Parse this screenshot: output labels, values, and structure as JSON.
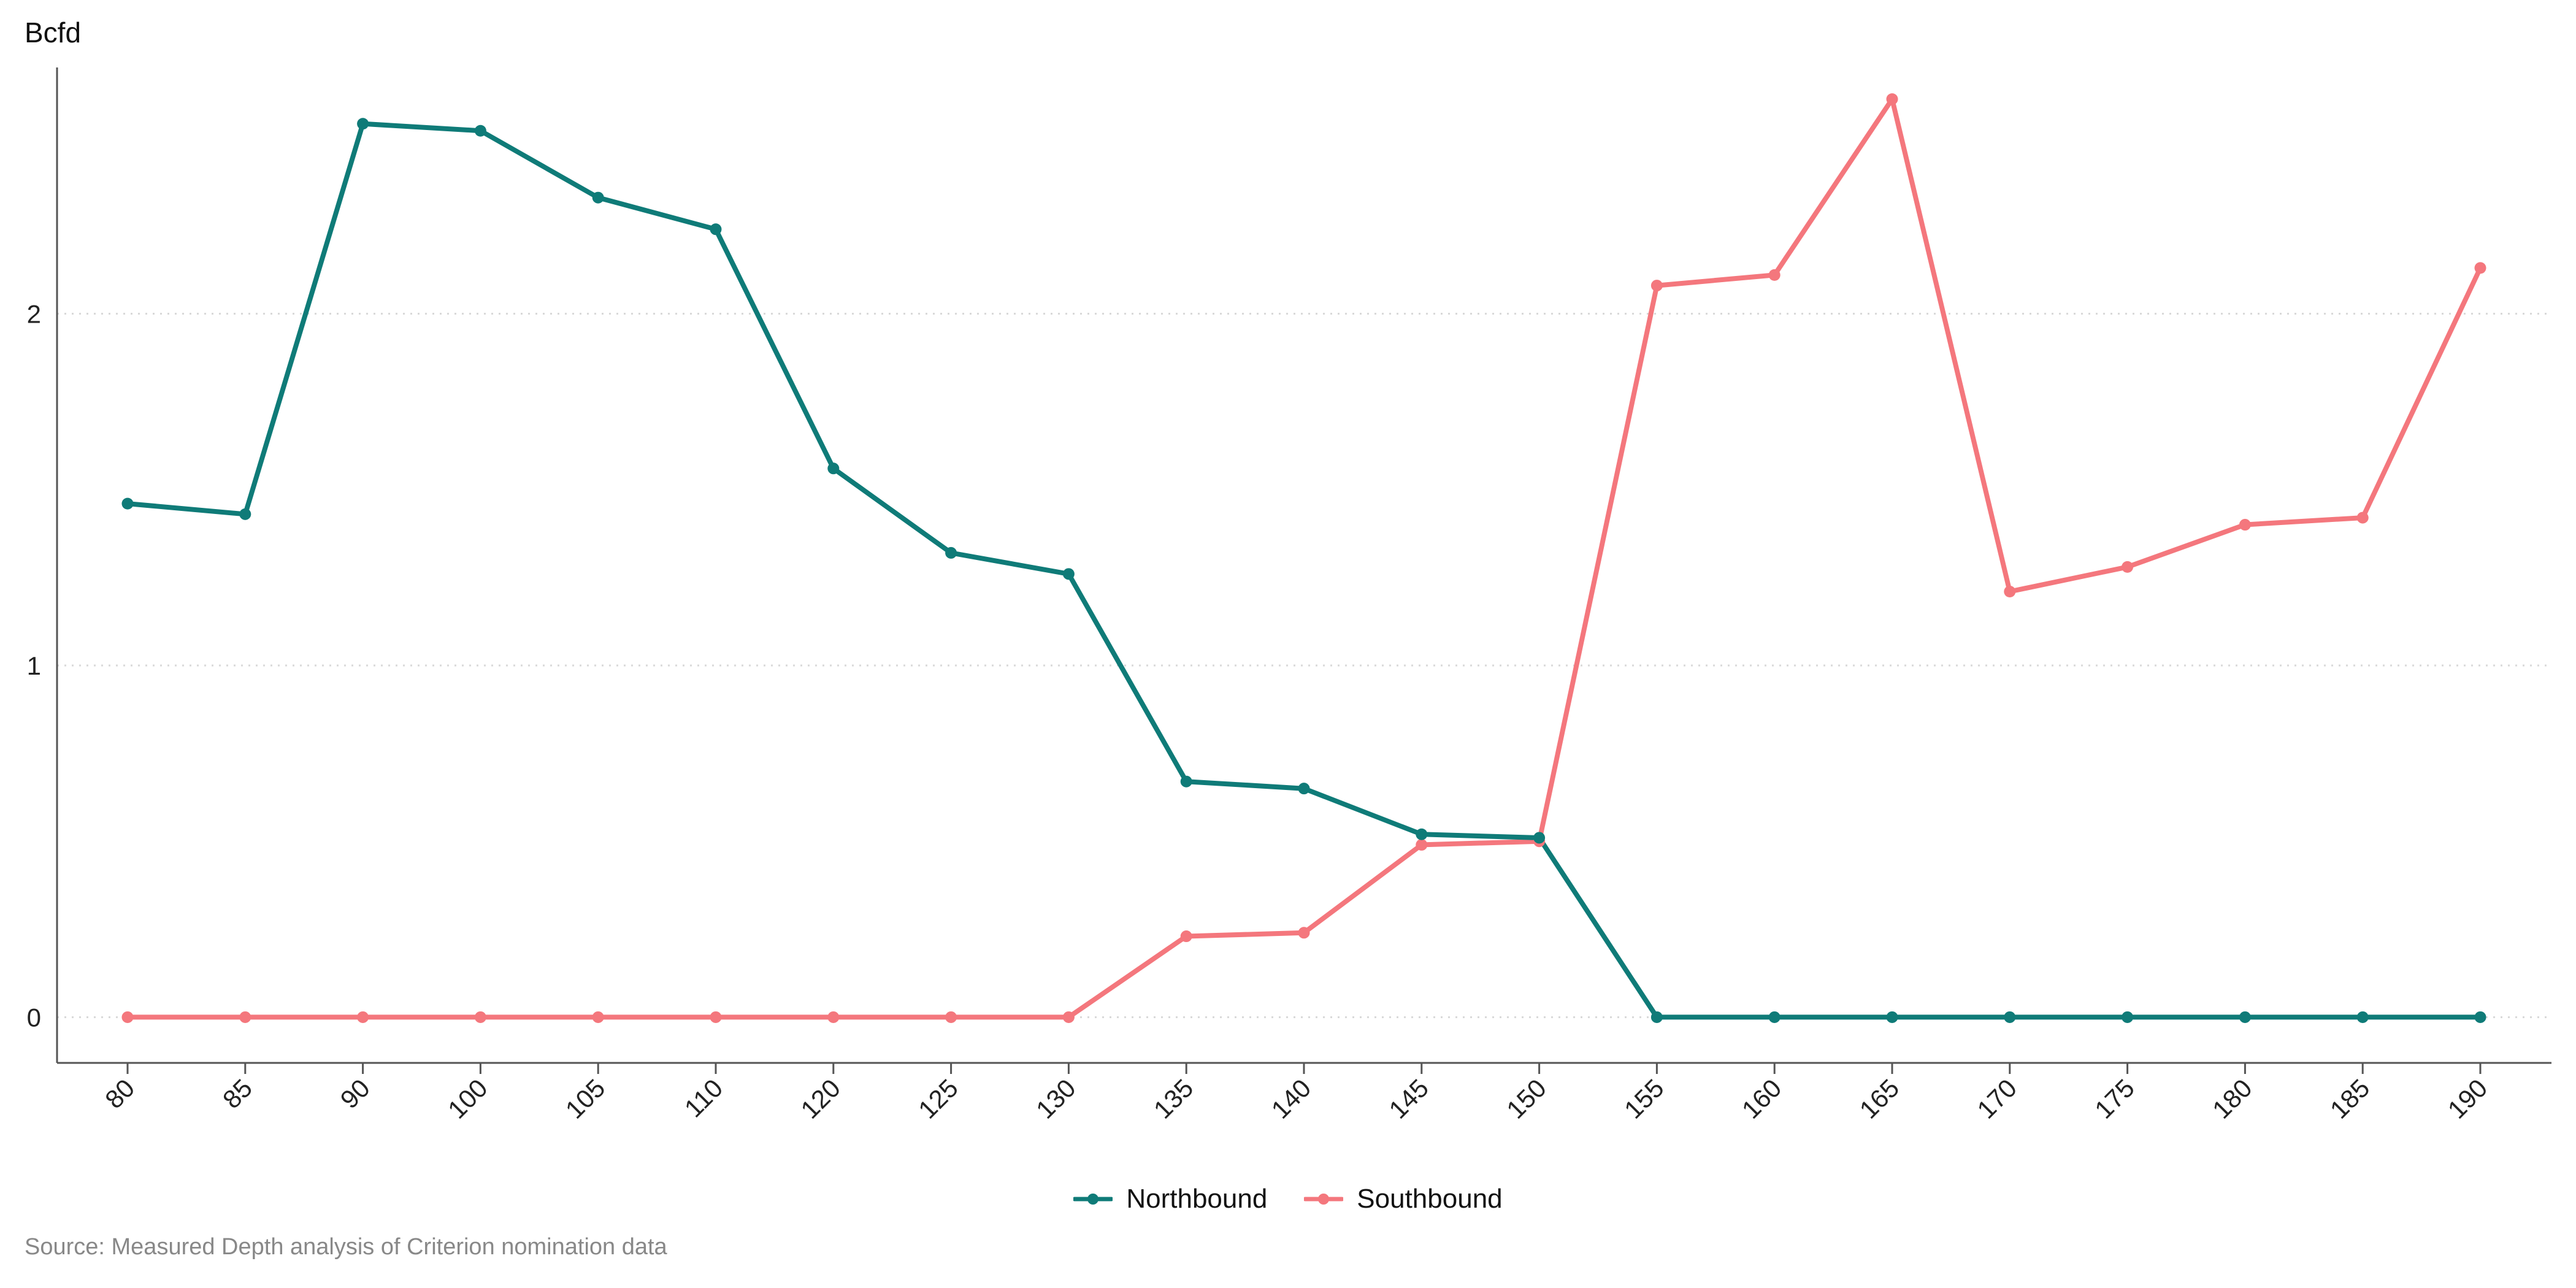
{
  "chart_data": {
    "type": "line",
    "title": "",
    "xlabel": "",
    "ylabel": "Bcfd",
    "categories": [
      "80",
      "85",
      "90",
      "100",
      "105",
      "110",
      "120",
      "125",
      "130",
      "135",
      "140",
      "145",
      "150",
      "155",
      "160",
      "165",
      "170",
      "175",
      "180",
      "185",
      "190"
    ],
    "ylim": [
      -0.13,
      2.7
    ],
    "yticks": [
      0,
      1,
      2
    ],
    "grid": "horizontal dotted",
    "legend_position": "bottom",
    "series": [
      {
        "name": "Northbound",
        "color": "#0f7b78",
        "values": [
          1.46,
          1.43,
          2.54,
          2.52,
          2.33,
          2.24,
          1.56,
          1.32,
          1.26,
          0.67,
          0.65,
          0.52,
          0.51,
          0,
          0,
          0,
          0,
          0,
          0,
          0,
          0
        ]
      },
      {
        "name": "Southbound",
        "color": "#f4777d",
        "values": [
          0,
          0,
          0,
          0,
          0,
          0,
          0,
          0,
          0,
          0.23,
          0.24,
          0.49,
          0.5,
          2.08,
          2.11,
          2.61,
          1.21,
          1.28,
          1.4,
          1.42,
          2.13
        ]
      }
    ],
    "source": "Source: Measured Depth analysis of Criterion nomination data"
  }
}
